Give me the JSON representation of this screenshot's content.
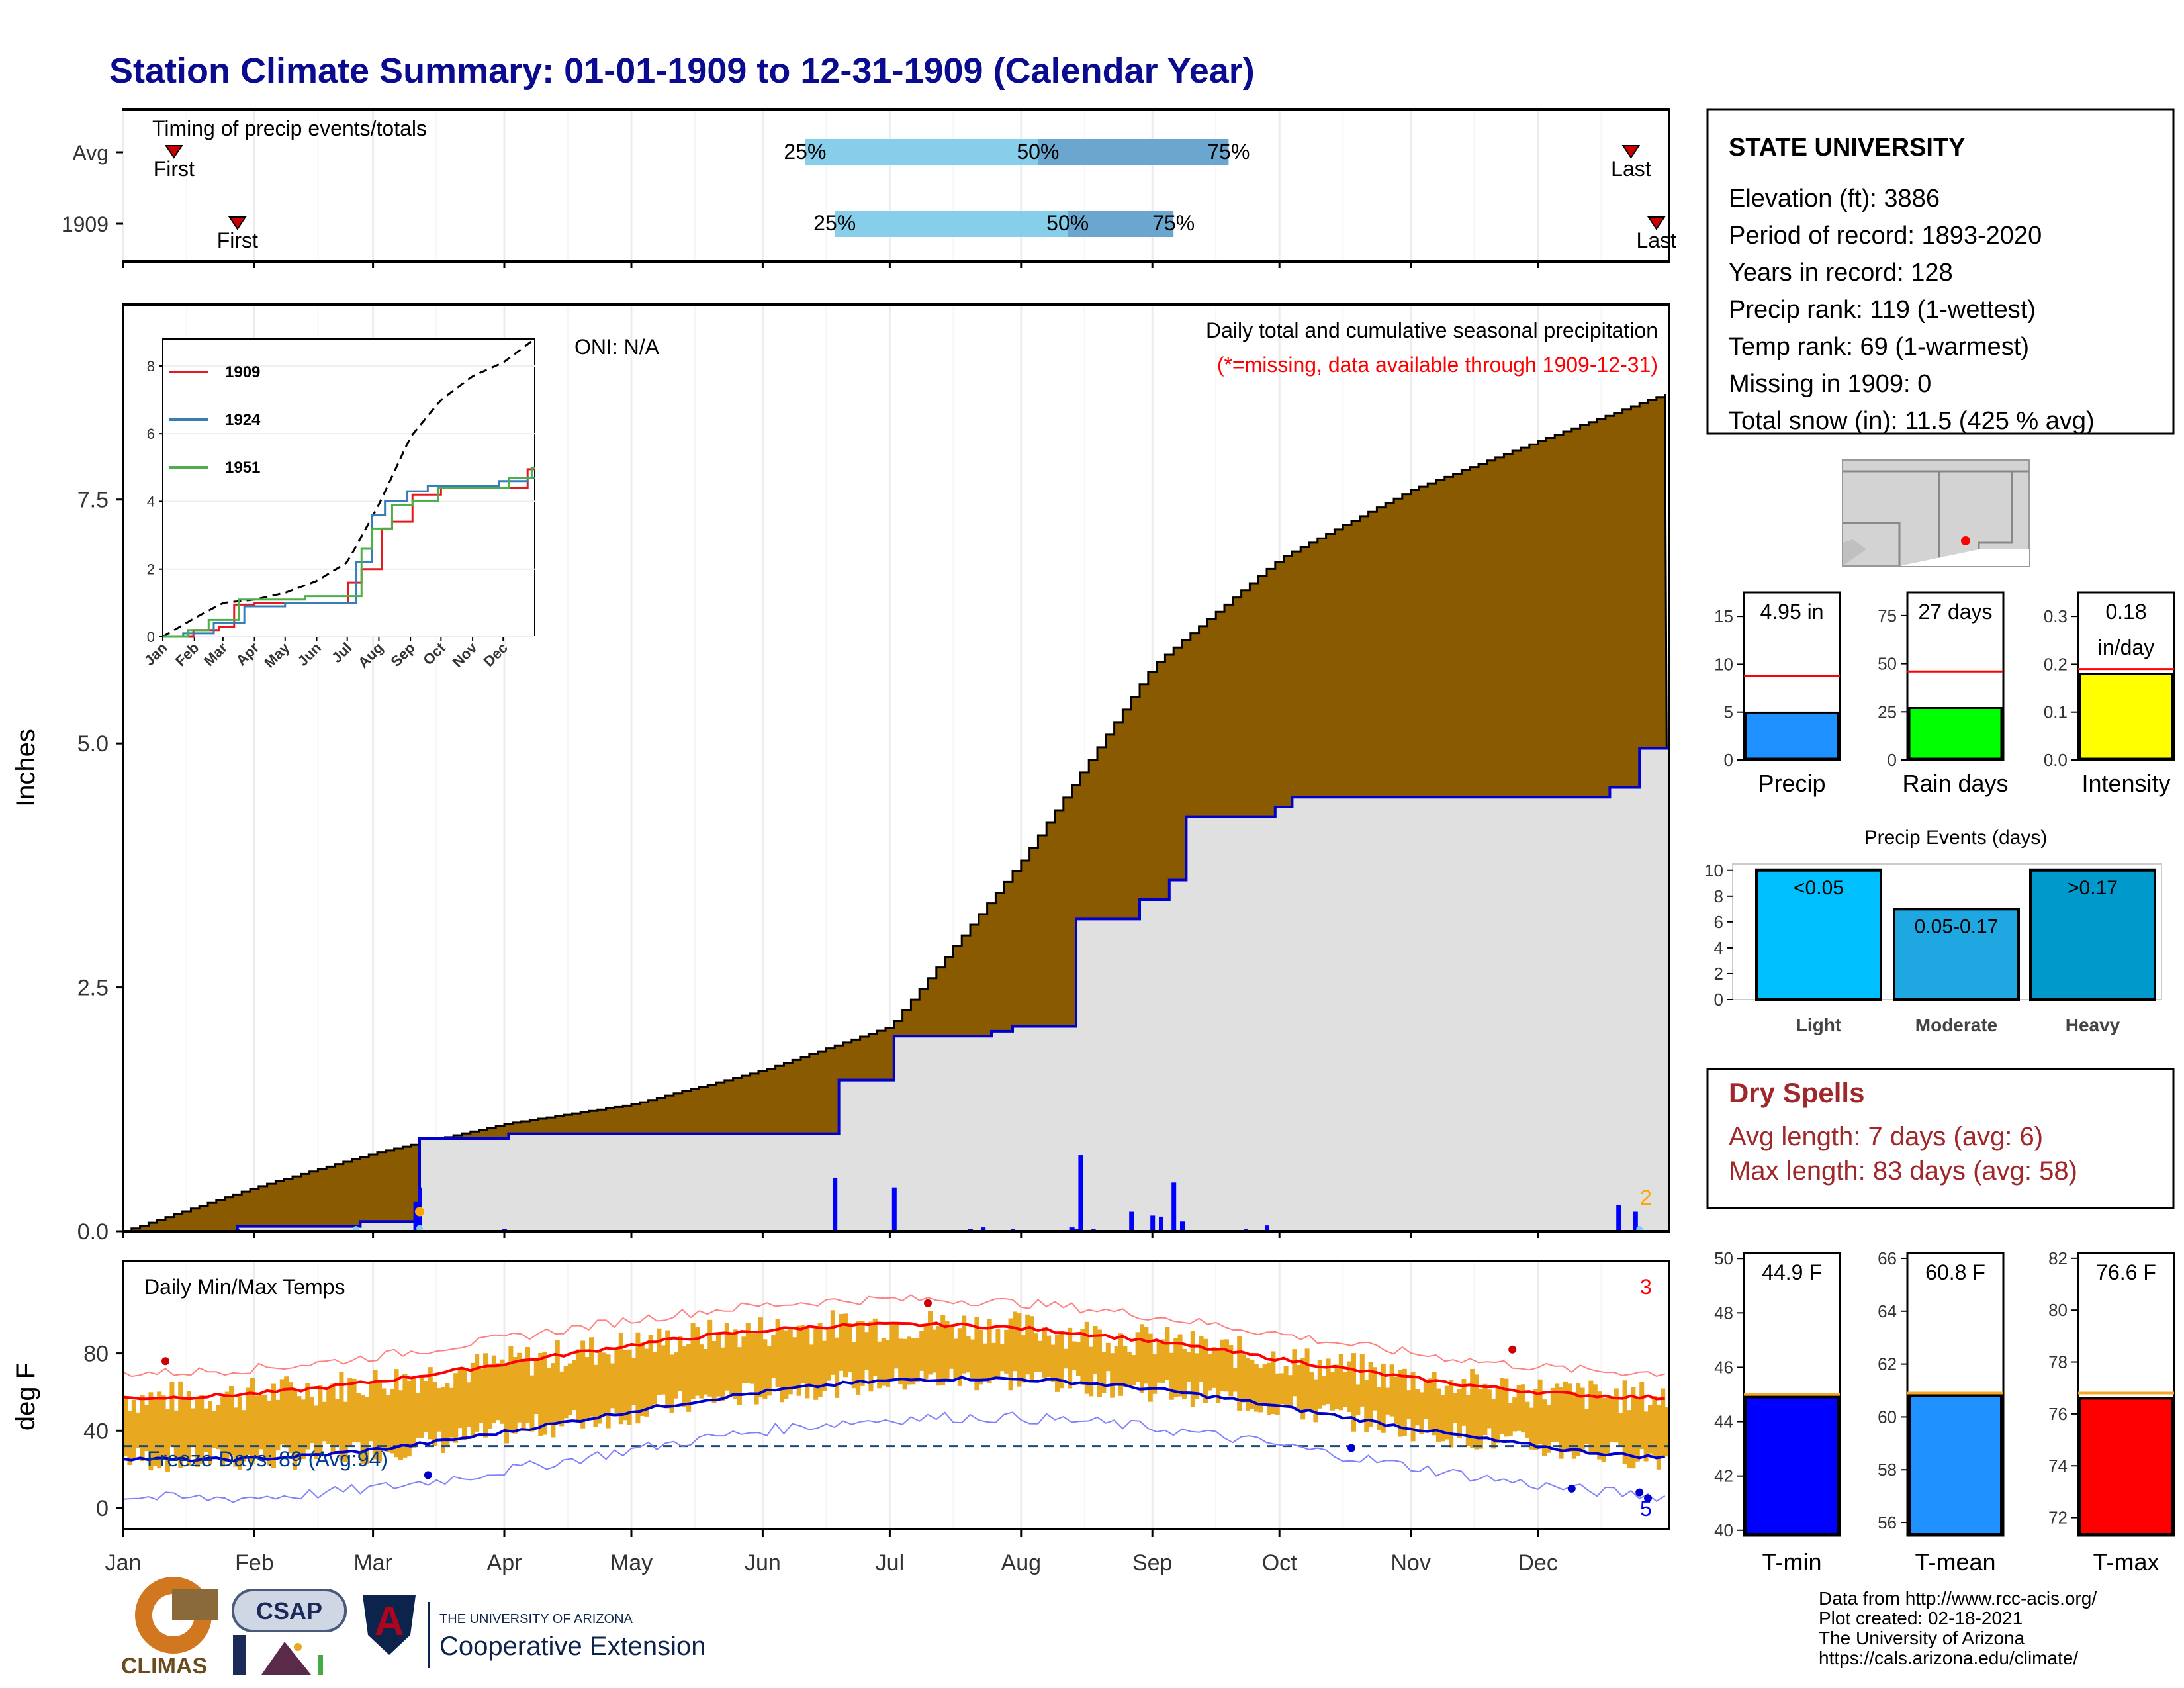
{
  "title": "Station Climate Summary: 01-01-1909 to 12-31-1909 (Calendar Year)",
  "colors": {
    "title": "#0b0b8f",
    "cumulative_fill": "#8a5a00",
    "avg_fill": "#e0e0e0",
    "precip_line": "#0000cc",
    "temp_bar": "#e8a820",
    "tmax_line": "#ff0000",
    "tmin_line": "#0000cc",
    "light_blue": "#87ceeb",
    "mid_blue": "#6aa6cd",
    "dry_spell": "#a0282a"
  },
  "timing": {
    "label": "Timing of precip events/totals",
    "rows": [
      {
        "name": "Avg",
        "first": "First",
        "last": "Last",
        "p25": "25%",
        "p50": "50%",
        "p75": "75%",
        "first_day": 12,
        "last_day": 356,
        "q25_day": 161,
        "q50_day": 216,
        "q75_day": 261
      },
      {
        "name": "1909",
        "first": "First",
        "last": "Last",
        "p25": "25%",
        "p50": "50%",
        "p75": "75%",
        "first_day": 27,
        "last_day": 362,
        "q25_day": 168,
        "q50_day": 223,
        "q75_day": 248
      }
    ]
  },
  "precip_panel": {
    "ylabel": "Inches",
    "oni": "ONI: N/A",
    "title1": "Daily total and cumulative seasonal precipitation",
    "title2": "(*=missing, data available through 1909-12-31)",
    "count_label": "2",
    "y_ticks": [
      "0.0",
      "2.5",
      "5.0",
      "7.5"
    ]
  },
  "inset": {
    "y_ticks": [
      "0",
      "2",
      "4",
      "6",
      "8"
    ],
    "x_ticks": [
      "Jan",
      "Feb",
      "Mar",
      "Apr",
      "May",
      "Jun",
      "Jul",
      "Aug",
      "Sep",
      "Oct",
      "Nov",
      "Dec"
    ],
    "legend": [
      "1909",
      "1924",
      "1951"
    ]
  },
  "temp_panel": {
    "ylabel": "deg F",
    "label": "Daily Min/Max Temps",
    "freeze": "Freeze Days: 89 (Avg:94)",
    "count_top": "3",
    "count_bottom": "5",
    "y_ticks": [
      "0",
      "40",
      "80"
    ]
  },
  "months": [
    "Jan",
    "Feb",
    "Mar",
    "Apr",
    "May",
    "Jun",
    "Jul",
    "Aug",
    "Sep",
    "Oct",
    "Nov",
    "Dec"
  ],
  "station": {
    "name": "STATE UNIVERSITY",
    "lines": [
      "Elevation (ft): 3886",
      "Period of record: 1893-2020",
      "Years in record: 128",
      "Precip rank: 119 (1-wettest)",
      "Temp rank: 69 (1-warmest)",
      "Missing in 1909: 0",
      "Total snow (in): 11.5 (425 % avg)"
    ]
  },
  "mini_bars": [
    {
      "label": "Precip",
      "value_text": "4.95 in",
      "value": 4.95,
      "avg": 8.8,
      "ymax": 17.5,
      "ticks": [
        "0",
        "5",
        "10",
        "15"
      ],
      "tickvals": [
        0,
        5,
        10,
        15
      ],
      "color": "#1e90ff"
    },
    {
      "label": "Rain days",
      "value_text": "27 days",
      "value": 27,
      "avg": 46,
      "ymax": 87,
      "ticks": [
        "0",
        "25",
        "50",
        "75"
      ],
      "tickvals": [
        0,
        25,
        50,
        75
      ],
      "color": "#00ff00"
    },
    {
      "label": "Intensity",
      "value_text": "0.18",
      "value_text2": "in/day",
      "value": 0.18,
      "avg": 0.19,
      "ymax": 0.35,
      "ticks": [
        "0.0",
        "0.1",
        "0.2",
        "0.3"
      ],
      "tickvals": [
        0,
        0.1,
        0.2,
        0.3
      ],
      "color": "#ffff00"
    }
  ],
  "events": {
    "title": "Precip Events (days)",
    "y_ticks": [
      "0",
      "2",
      "4",
      "6",
      "8",
      "10"
    ],
    "bars": [
      {
        "label": "Light",
        "value_text": "<0.05",
        "value": 10,
        "color": "#00bfff"
      },
      {
        "label": "Moderate",
        "value_text": "0.05-0.17",
        "value": 7,
        "color": "#1ea7e0"
      },
      {
        "label": "Heavy",
        "value_text": ">0.17",
        "value": 10,
        "color": "#0099cc"
      }
    ]
  },
  "dry_spells": {
    "title": "Dry Spells",
    "avg": "Avg length: 7 days (avg: 6)",
    "max": "Max length: 83 days (avg: 58)"
  },
  "temp_bars": [
    {
      "label": "T-min",
      "value_text": "44.9 F",
      "value": 44.9,
      "avg": 45.0,
      "ymin": 39.8,
      "ymax": 50.2,
      "ticks": [
        "40",
        "42",
        "44",
        "46",
        "48",
        "50"
      ],
      "tickvals": [
        40,
        42,
        44,
        46,
        48,
        50
      ],
      "color": "#0000ff"
    },
    {
      "label": "T-mean",
      "value_text": "60.8 F",
      "value": 60.8,
      "avg": 60.9,
      "ymin": 55.5,
      "ymax": 66.2,
      "ticks": [
        "56",
        "58",
        "60",
        "62",
        "64",
        "66"
      ],
      "tickvals": [
        56,
        58,
        60,
        62,
        64,
        66
      ],
      "color": "#1e90ff"
    },
    {
      "label": "T-max",
      "value_text": "76.6 F",
      "value": 76.6,
      "avg": 76.8,
      "ymin": 71.3,
      "ymax": 82.2,
      "ticks": [
        "72",
        "74",
        "76",
        "78",
        "80",
        "82"
      ],
      "tickvals": [
        72,
        74,
        76,
        78,
        80,
        82
      ],
      "color": "#ff0000"
    }
  ],
  "footer": {
    "lines": [
      "Data from http://www.rcc-acis.org/",
      "Plot created: 02-18-2021",
      "The University of Arizona",
      "https://cals.arizona.edu/climate/"
    ]
  },
  "logos": {
    "climas": "CLIMAS",
    "csap": "CSAP",
    "ua_small": "THE UNIVERSITY OF ARIZONA",
    "ua_big": "Cooperative Extension"
  },
  "chart_data": {
    "type": "area",
    "title": "Station Climate Summary: 01-01-1909 to 12-31-1909 (Calendar Year)",
    "ylabel": "Inches",
    "ylim": [
      0,
      9.5
    ],
    "cumulative_avg": {
      "x": [
        "Jan 1",
        "Feb 1",
        "Mar 1",
        "Apr 1",
        "May 1",
        "Jun 1",
        "Jul 1",
        "Aug 1",
        "Sep 1",
        "Oct 1",
        "Nov 1",
        "Dec 1",
        "Dec 31"
      ],
      "y": [
        0,
        0.45,
        0.8,
        1.1,
        1.3,
        1.65,
        2.1,
        3.8,
        5.8,
        6.9,
        7.6,
        8.1,
        8.6
      ]
    },
    "cumulative_1909": {
      "x": [
        "Jan 1",
        "Mar 10",
        "Mar 12",
        "Apr 1",
        "Jun 19",
        "Jul 2",
        "Aug 14",
        "Aug 27",
        "Sep 8",
        "Oct 1",
        "Dec 18",
        "Dec 25",
        "Dec 31"
      ],
      "y": [
        0,
        0.1,
        0.95,
        0.95,
        1.55,
        2.0,
        3.2,
        3.4,
        4.25,
        4.45,
        4.55,
        4.95,
        4.95
      ]
    },
    "temperature": {
      "ylabel": "deg F",
      "tmax_avg_range": [
        57,
        95
      ],
      "tmin_avg_range": [
        25,
        67
      ],
      "freeze_line": 32
    }
  }
}
